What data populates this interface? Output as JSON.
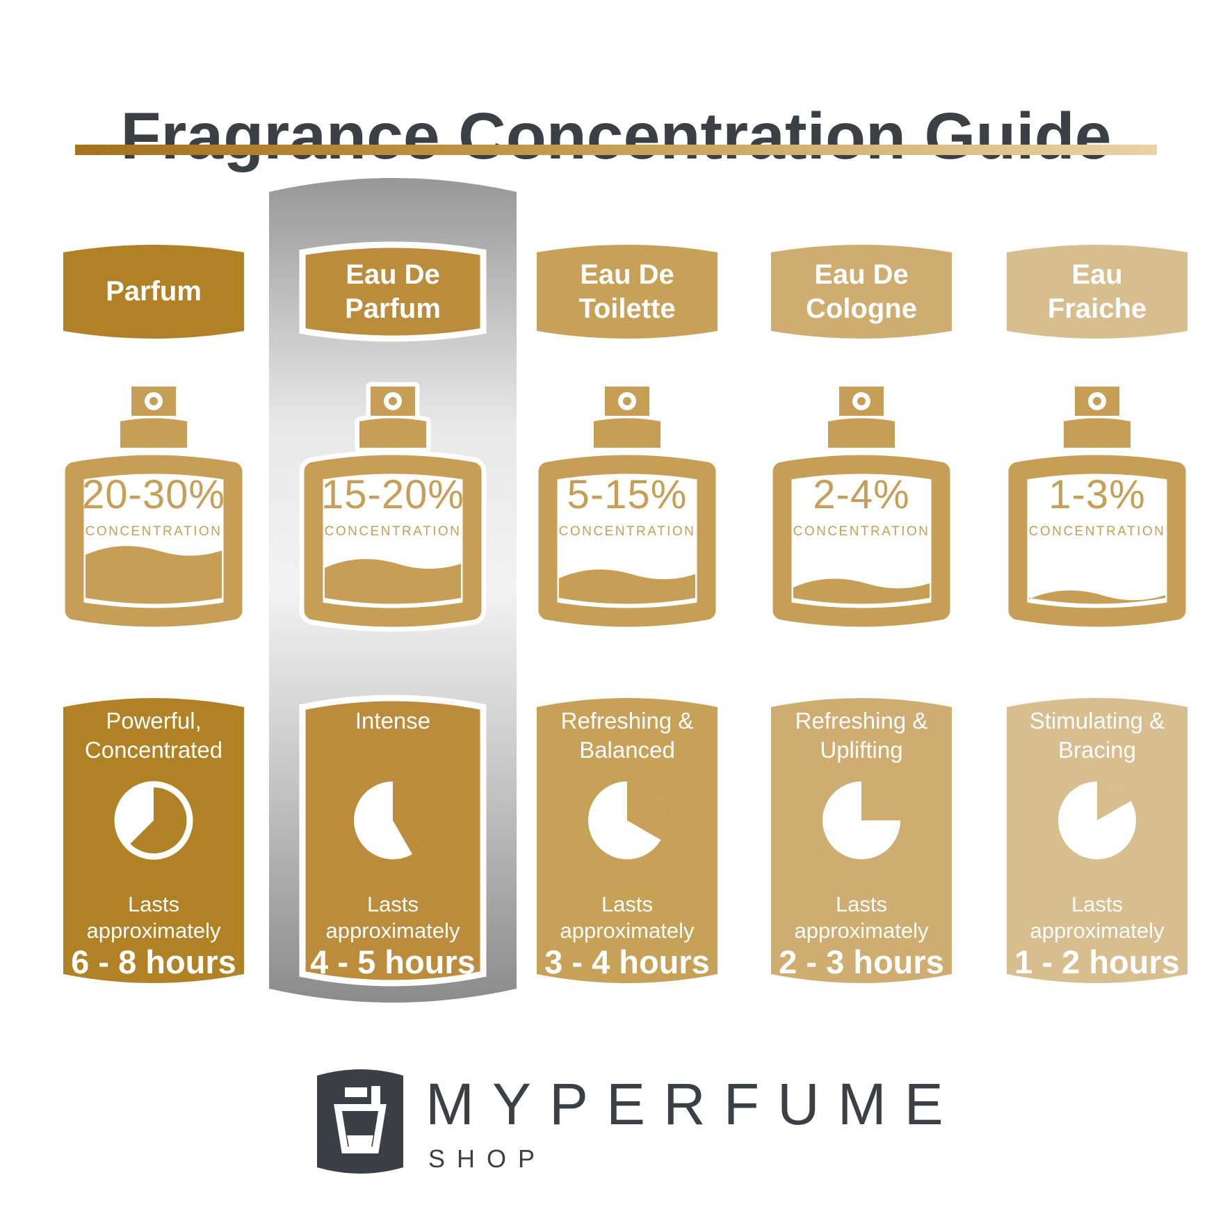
{
  "title": "Fragrance Concentration Guide",
  "labels": {
    "concentration": "CONCENTRATION",
    "lasts": "Lasts approximately"
  },
  "bottle_color": "#c69e56",
  "charcoal": "#3b4047",
  "underline_gradient": [
    "#a5711b",
    "#c49a4e",
    "#e9d3a4"
  ],
  "columns": [
    {
      "name": "Parfum",
      "concentration": "20-30%",
      "description": "Powerful, Concentrated",
      "hours": "6 - 8 hours",
      "color": "#b08125",
      "fill_pct": 42,
      "pie": {
        "style": "ring",
        "start": 225,
        "end": 360
      },
      "highlighted": false
    },
    {
      "name": "Eau De Parfum",
      "concentration": "15-20%",
      "description": "Intense",
      "hours": "4 - 5 hours",
      "color": "#bb8c3b",
      "fill_pct": 32,
      "pie": {
        "style": "solid",
        "start": 0,
        "end": 150
      },
      "highlighted": true
    },
    {
      "name": "Eau De Toilette",
      "concentration": "5-15%",
      "description": "Refreshing & Balanced",
      "hours": "3 - 4 hours",
      "color": "#c7a158",
      "fill_pct": 24,
      "pie": {
        "style": "solid",
        "start": 0,
        "end": 120
      },
      "highlighted": false
    },
    {
      "name": "Eau De Cologne",
      "concentration": "2-4%",
      "description": "Refreshing & Uplifting",
      "hours": "2 - 3 hours",
      "color": "#cfac70",
      "fill_pct": 17,
      "pie": {
        "style": "solid",
        "start": 0,
        "end": 90
      },
      "highlighted": false
    },
    {
      "name": "Eau Fraiche",
      "concentration": "1-3%",
      "description": "Stimulating & Bracing",
      "hours": "1 - 2 hours",
      "color": "#d8bd8e",
      "fill_pct": 8,
      "pie": {
        "style": "solid",
        "start": 0,
        "end": 60
      },
      "highlighted": false
    }
  ],
  "footer": {
    "brand": "MYPERFUME",
    "sub": "SHOP"
  }
}
